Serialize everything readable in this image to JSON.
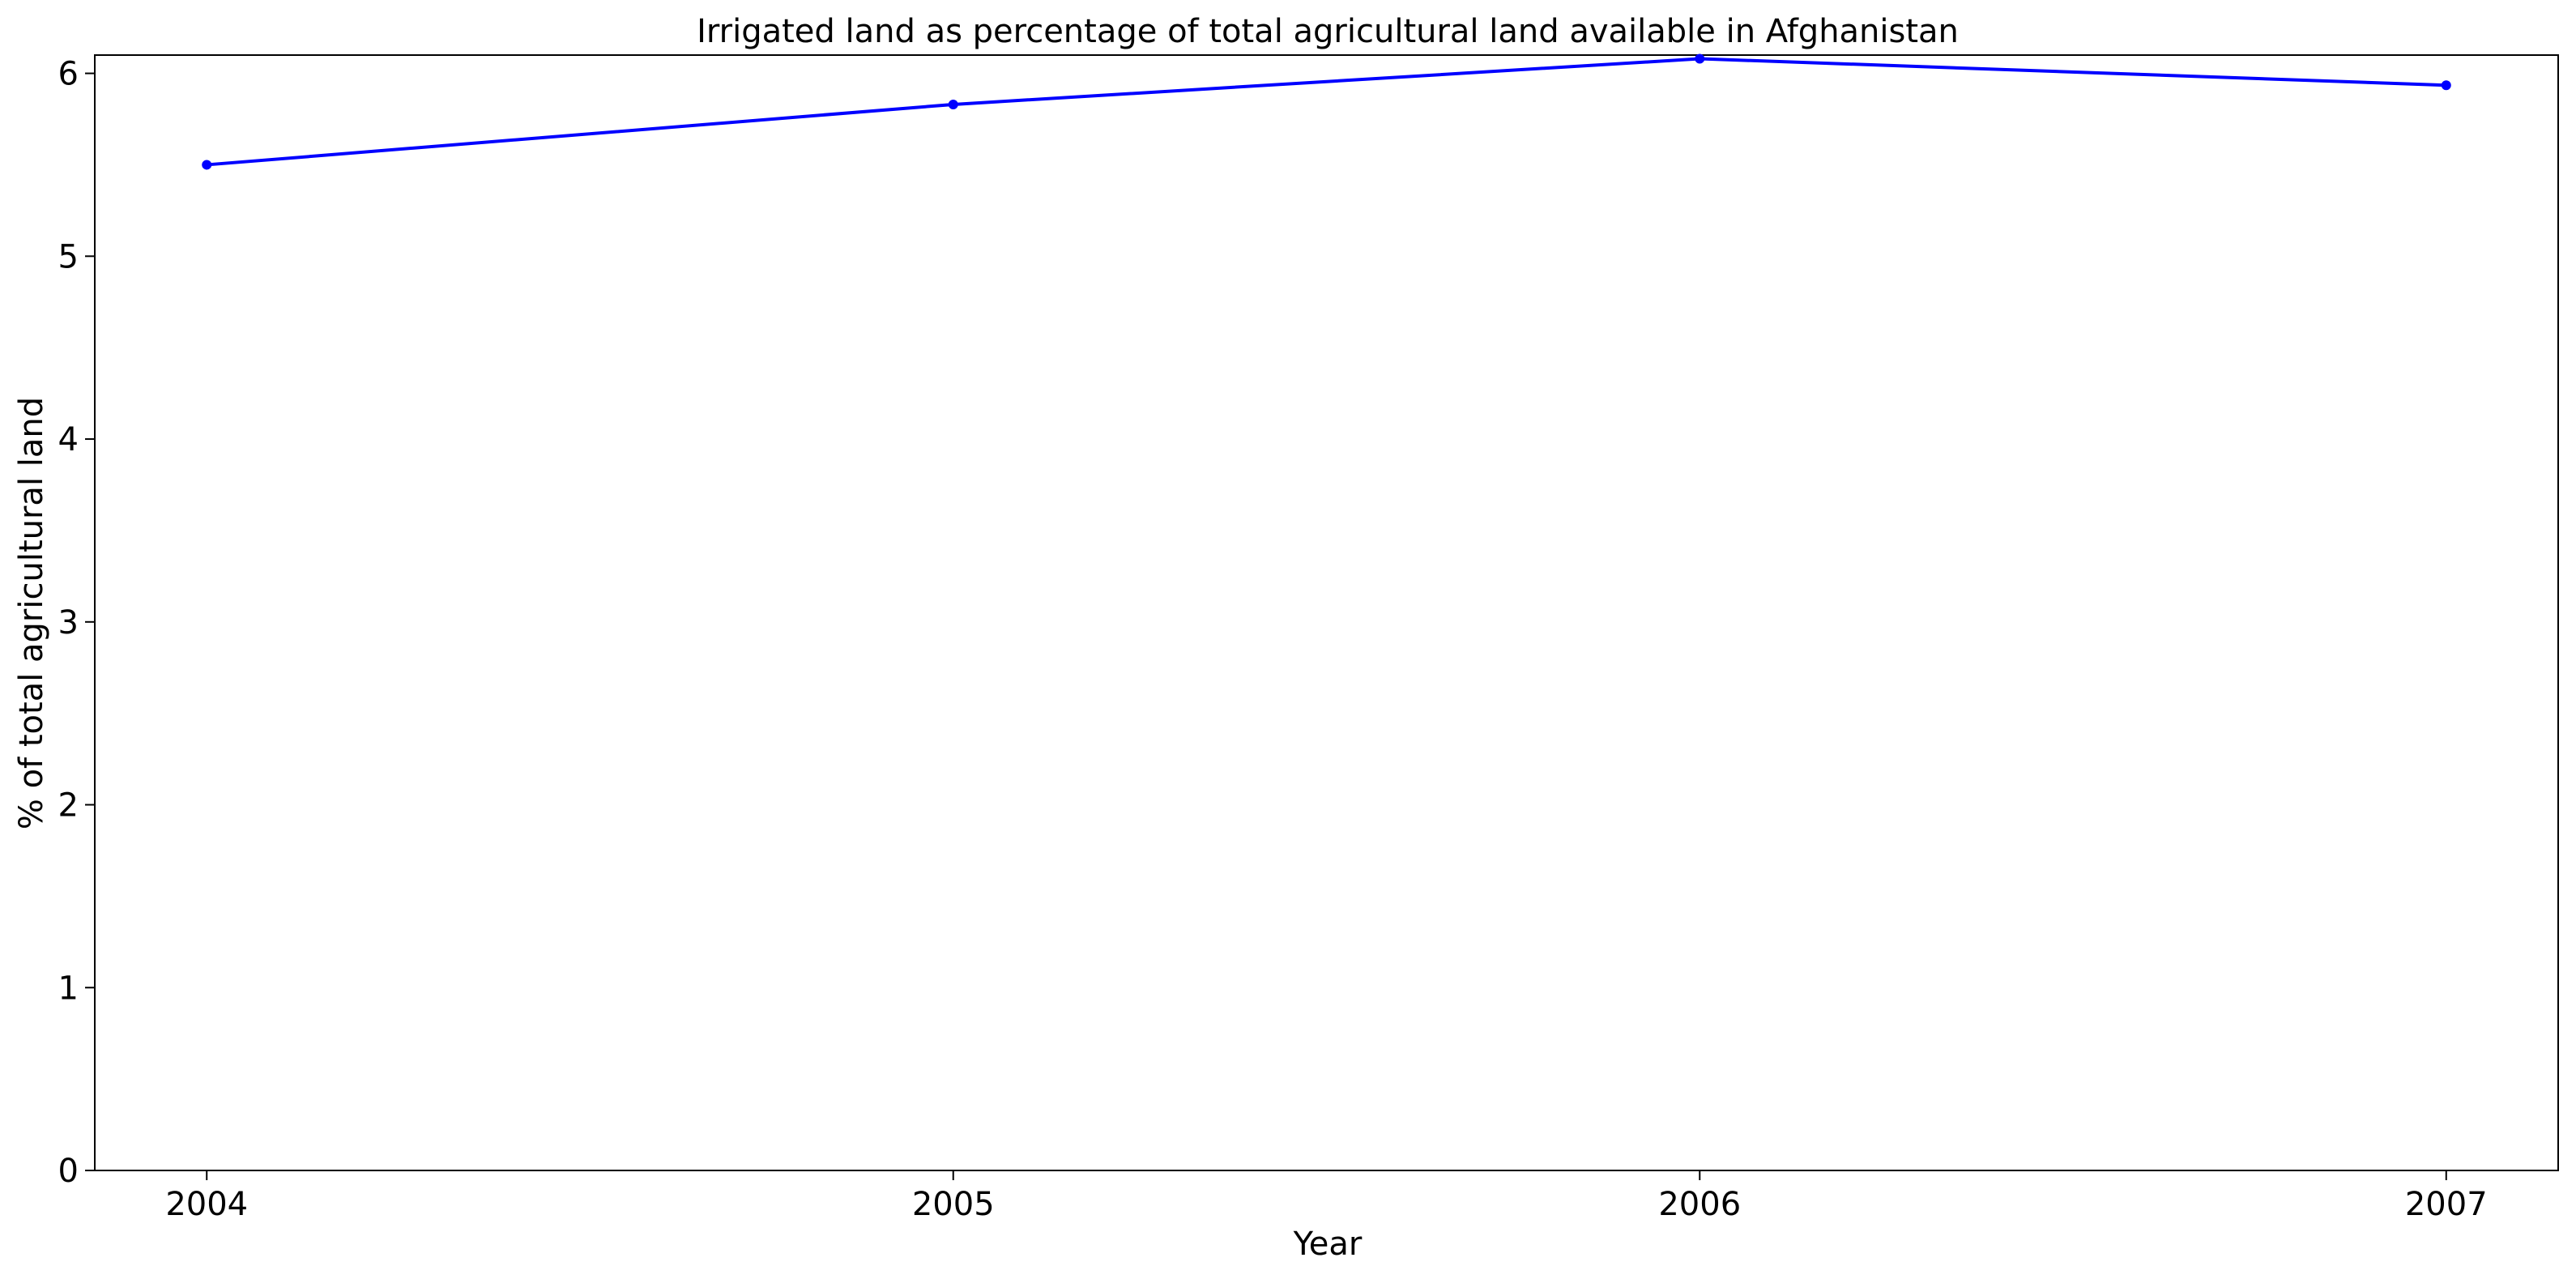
{
  "chart_data": {
    "type": "line",
    "title": "Irrigated land as percentage of total agricultural land available in Afghanistan",
    "xlabel": "Year",
    "ylabel": "% of total agricultural land",
    "x": [
      "2004",
      "2005",
      "2006",
      "2007"
    ],
    "series": [
      {
        "values": [
          5.5,
          5.83,
          6.08,
          5.935
        ],
        "color": "#0000ff",
        "marker": "dot"
      }
    ],
    "xlim": [
      2003.85,
      2007.15
    ],
    "ylim": [
      0,
      6.1
    ],
    "yticks": [
      0,
      1,
      2,
      3,
      4,
      5,
      6
    ],
    "grid": false,
    "legend": "none"
  }
}
